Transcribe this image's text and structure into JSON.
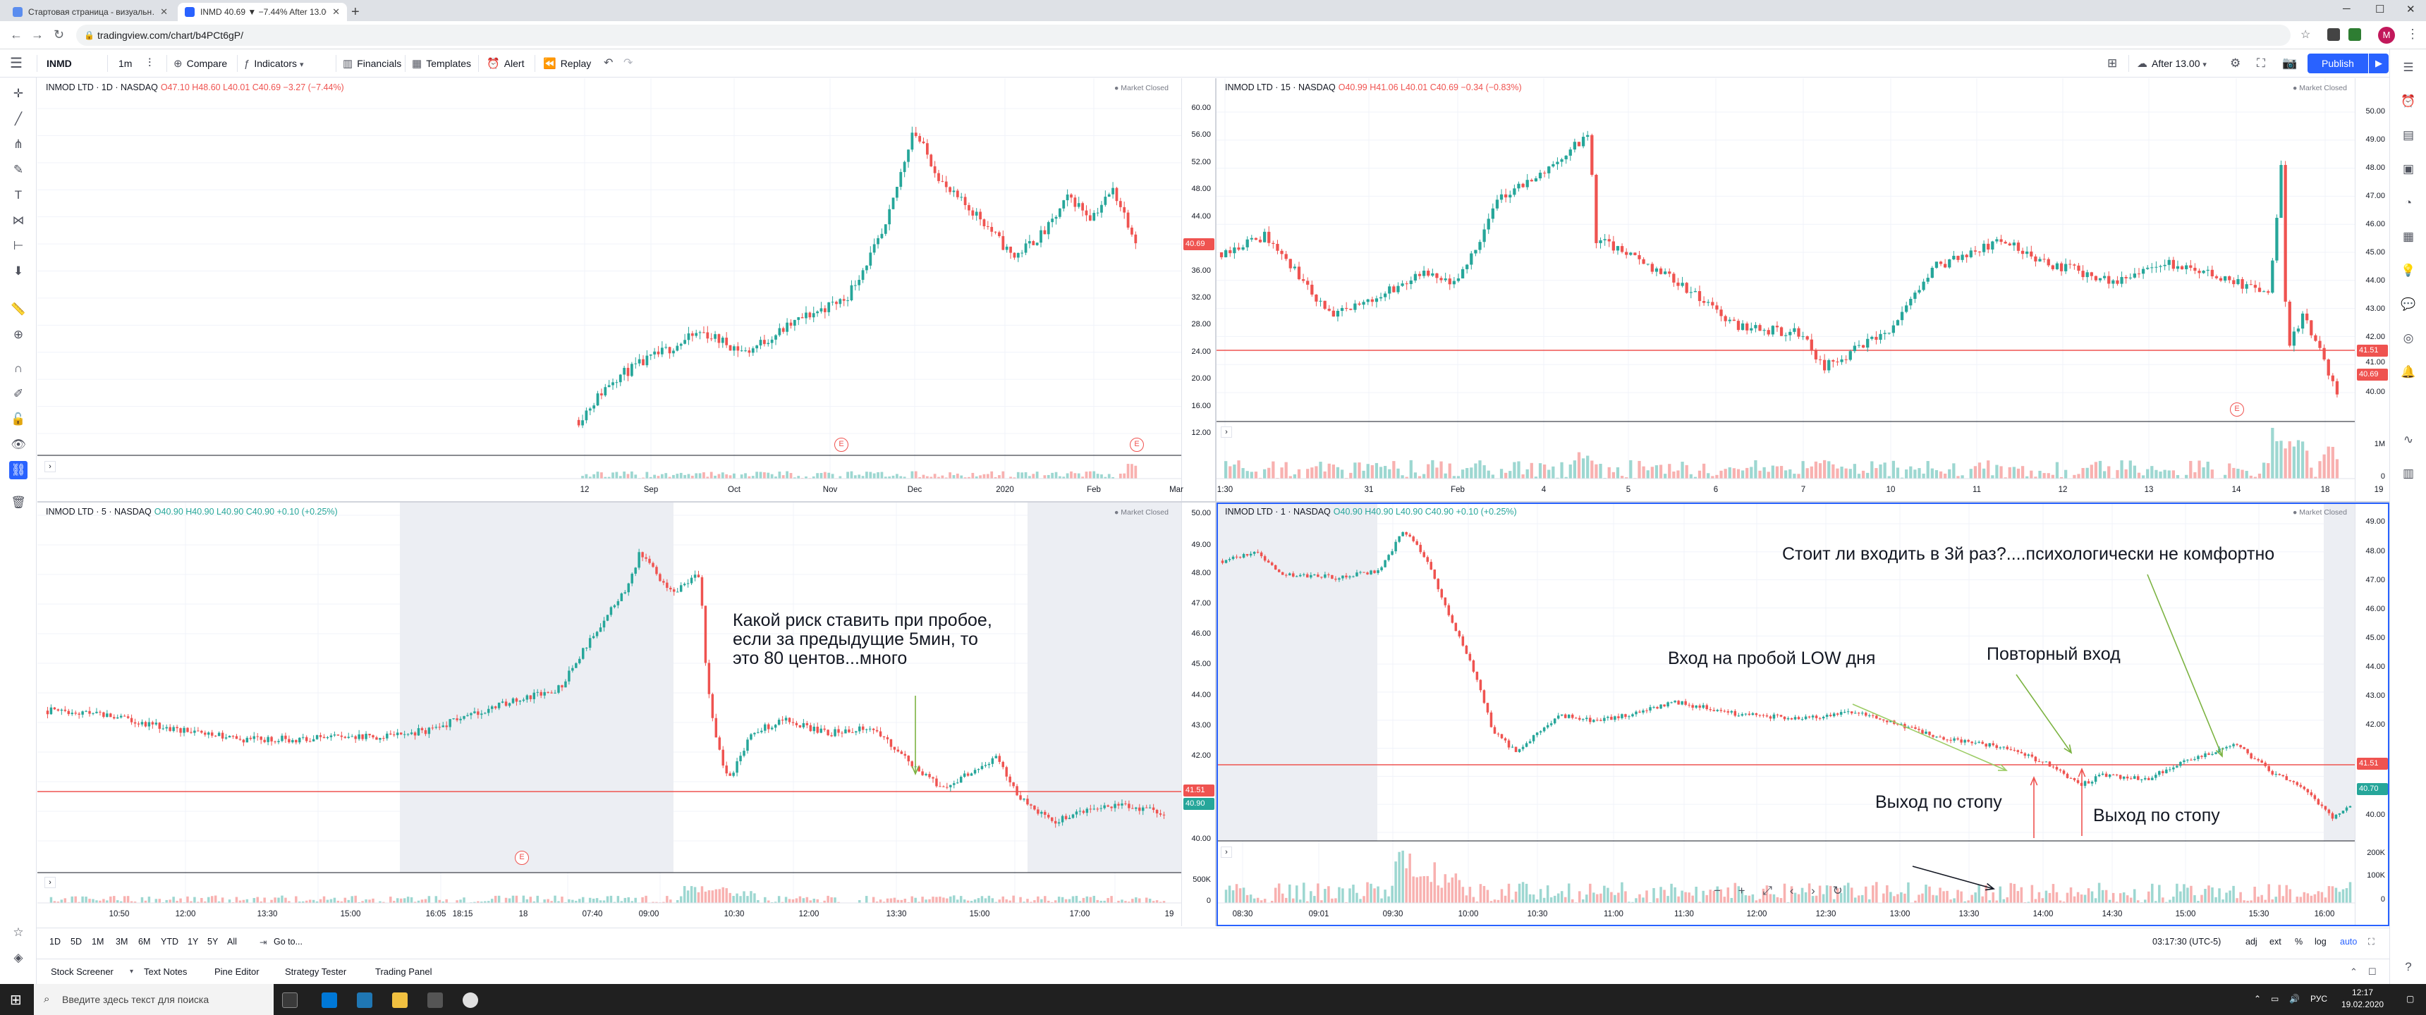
{
  "browser": {
    "tabs": [
      {
        "title": "Стартовая страница - визуальн…",
        "active": false
      },
      {
        "title": "INMD 40.69 ▼ −7.44% After 13.00",
        "active": true
      }
    ],
    "url": "tradingview.com/chart/b4PCt6gP/"
  },
  "toolbar": {
    "symbol": "INMD",
    "interval": "1m",
    "compare": "Compare",
    "indicators": "Indicators",
    "financials": "Financials",
    "templates": "Templates",
    "alert": "Alert",
    "replay": "Replay",
    "session": "After 13.00",
    "publish": "Publish"
  },
  "panes": [
    {
      "id": "daily",
      "title": "INMOD LTD · 1D · NASDAQ",
      "ohlc": "O47.10 H48.60 L40.01 C40.69 −3.27 (−7.44%)",
      "market_status": "Market Closed",
      "y_ticks": [
        "60.00",
        "56.00",
        "52.00",
        "48.00",
        "44.00",
        "40.69",
        "36.00",
        "32.00",
        "28.00",
        "24.00",
        "20.00",
        "16.00",
        "12.00"
      ],
      "last_price": "40.69",
      "x_ticks": [
        "12",
        "Sep",
        "Oct",
        "Nov",
        "Dec",
        "2020",
        "Feb",
        "Mar"
      ],
      "earnings_marker": "E"
    },
    {
      "id": "m15",
      "title": "INMOD LTD · 15 · NASDAQ",
      "ohlc": "O40.99 H41.06 L40.01 C40.69 −0.34 (−0.83%)",
      "market_status": "Market Closed",
      "y_ticks": [
        "50.00",
        "49.00",
        "48.00",
        "47.00",
        "46.00",
        "45.00",
        "44.00",
        "43.00",
        "42.00",
        "41.51",
        "41.00",
        "40.69",
        "40.00"
      ],
      "level_price": "41.51",
      "last_price": "40.69",
      "vol_ticks": [
        "1M",
        "0"
      ],
      "x_ticks": [
        "1:30",
        "31",
        "Feb",
        "4",
        "5",
        "6",
        "7",
        "10",
        "11",
        "12",
        "13",
        "14",
        "18",
        "19"
      ],
      "earnings_marker": "E"
    },
    {
      "id": "m5",
      "title": "INMOD LTD · 5 · NASDAQ",
      "ohlc": "O40.90 H40.90 L40.90 C40.90 +0.10 (+0.25%)",
      "market_status": "Market Closed",
      "y_ticks": [
        "50.00",
        "49.00",
        "48.00",
        "47.00",
        "46.00",
        "45.00",
        "44.00",
        "43.00",
        "42.00",
        "41.51",
        "40.90",
        "40.00"
      ],
      "level_price": "41.51",
      "last_price": "40.90",
      "vol_ticks": [
        "500K",
        "0"
      ],
      "x_ticks": [
        "10:50",
        "12:00",
        "13:30",
        "15:00",
        "16:05",
        "18:15",
        "18",
        "07:40",
        "09:00",
        "10:30",
        "12:00",
        "13:30",
        "15:00",
        "17:00",
        "19"
      ],
      "annotation": "Какой риск ставить при пробое,\nесли за предыдущие 5мин, то\nэто 80 центов...много",
      "earnings_marker": "E"
    },
    {
      "id": "m1",
      "title": "INMOD LTD · 1 · NASDAQ",
      "ohlc": "O40.90 H40.90 L40.90 C40.90 +0.10 (+0.25%)",
      "market_status": "Market Closed",
      "y_ticks": [
        "49.00",
        "48.00",
        "47.00",
        "46.00",
        "45.00",
        "44.00",
        "43.00",
        "42.00",
        "41.51",
        "40.70",
        "40.00"
      ],
      "level_price": "41.51",
      "last_price": "40.70",
      "vol_ticks": [
        "200K",
        "100K",
        "0"
      ],
      "x_ticks": [
        "08:30",
        "09:01",
        "09:30",
        "10:00",
        "10:30",
        "11:00",
        "11:30",
        "12:00",
        "12:30",
        "13:00",
        "13:30",
        "14:00",
        "14:30",
        "15:00",
        "15:30",
        "16:00"
      ],
      "annotations": {
        "third_entry": "Стоит ли входить в 3й раз?....психологически не комфортно",
        "entry_low": "Вход на пробой LOW дня",
        "repeat_entry": "Повторный вход",
        "stop1": "Выход по стопу",
        "stop2": "Выход по стопу"
      }
    }
  ],
  "bottom": {
    "ranges": [
      "1D",
      "5D",
      "1M",
      "3M",
      "6M",
      "YTD",
      "1Y",
      "5Y",
      "All"
    ],
    "goto": "Go to...",
    "time": "03:17:30 (UTC-5)",
    "opts": [
      "adj",
      "ext",
      "%",
      "log",
      "auto"
    ]
  },
  "panel_tabs": [
    "Stock Screener",
    "Text Notes",
    "Pine Editor",
    "Strategy Tester",
    "Trading Panel"
  ],
  "taskbar": {
    "search": "Введите здесь текст для поиска",
    "lang": "РУС",
    "time": "12:17",
    "date": "19.02.2020"
  },
  "colors": {
    "up": "#26a69a",
    "down": "#ef5350",
    "accent": "#2962ff"
  }
}
